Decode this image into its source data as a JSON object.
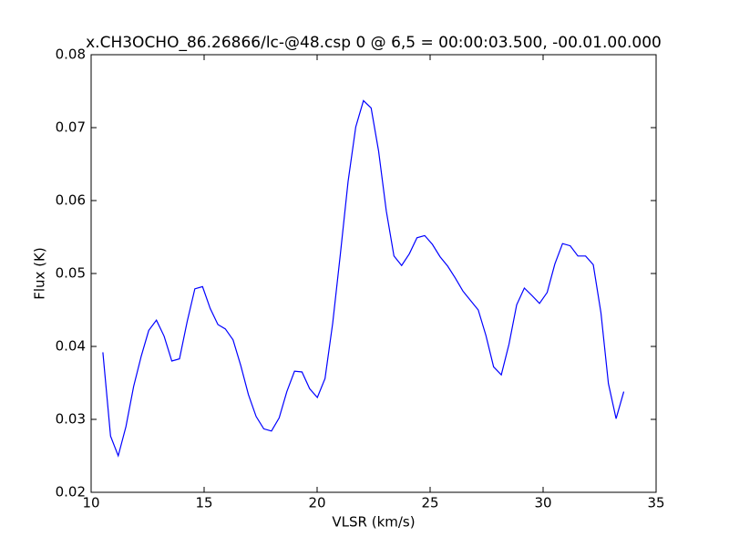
{
  "chart_data": {
    "type": "line",
    "title": "x.CH3OCHO_86.26866/lc-@48.csp 0 @ 6,5 = 00:00:03.500, -00.01.00.000",
    "xlabel": "VLSR (km/s)",
    "ylabel": "Flux (K)",
    "xlim": [
      10,
      35
    ],
    "ylim": [
      0.02,
      0.08
    ],
    "xticks": [
      10,
      15,
      20,
      25,
      30,
      35
    ],
    "yticks": [
      0.02,
      0.03,
      0.04,
      0.05,
      0.06,
      0.07,
      0.08
    ],
    "grid": false,
    "x": [
      10.52,
      10.86,
      11.2,
      11.54,
      11.88,
      12.22,
      12.55,
      12.89,
      13.23,
      13.57,
      13.91,
      14.25,
      14.59,
      14.93,
      15.27,
      15.61,
      15.94,
      16.28,
      16.62,
      16.96,
      17.3,
      17.64,
      17.98,
      18.32,
      18.66,
      19.0,
      19.33,
      19.67,
      20.01,
      20.35,
      20.69,
      21.03,
      21.37,
      21.71,
      22.05,
      22.39,
      22.72,
      23.06,
      23.4,
      23.74,
      24.08,
      24.42,
      24.76,
      25.1,
      25.44,
      25.78,
      26.11,
      26.45,
      26.79,
      27.13,
      27.47,
      27.81,
      28.15,
      28.49,
      28.83,
      29.17,
      29.5,
      29.84,
      30.18,
      30.52,
      30.86,
      31.2,
      31.54,
      31.88,
      32.22,
      32.56,
      32.89,
      33.23,
      33.57
    ],
    "series": [
      {
        "color": "#0000ff",
        "values": [
          0.0392,
          0.0277,
          0.025,
          0.029,
          0.0345,
          0.0387,
          0.0422,
          0.0436,
          0.0414,
          0.038,
          0.0383,
          0.0434,
          0.0479,
          0.0482,
          0.0452,
          0.043,
          0.0424,
          0.0409,
          0.0374,
          0.0334,
          0.0304,
          0.0287,
          0.0284,
          0.0302,
          0.0338,
          0.0366,
          0.0365,
          0.0342,
          0.033,
          0.0356,
          0.0432,
          0.0527,
          0.0626,
          0.0701,
          0.0737,
          0.0727,
          0.0668,
          0.0586,
          0.0524,
          0.0511,
          0.0527,
          0.0549,
          0.0552,
          0.054,
          0.0523,
          0.051,
          0.0494,
          0.0476,
          0.0463,
          0.045,
          0.0415,
          0.0372,
          0.0361,
          0.0403,
          0.0457,
          0.048,
          0.047,
          0.0459,
          0.0474,
          0.0513,
          0.0541,
          0.0538,
          0.0524,
          0.0524,
          0.0512,
          0.0446,
          0.0349,
          0.0301,
          0.0338
        ]
      }
    ]
  }
}
